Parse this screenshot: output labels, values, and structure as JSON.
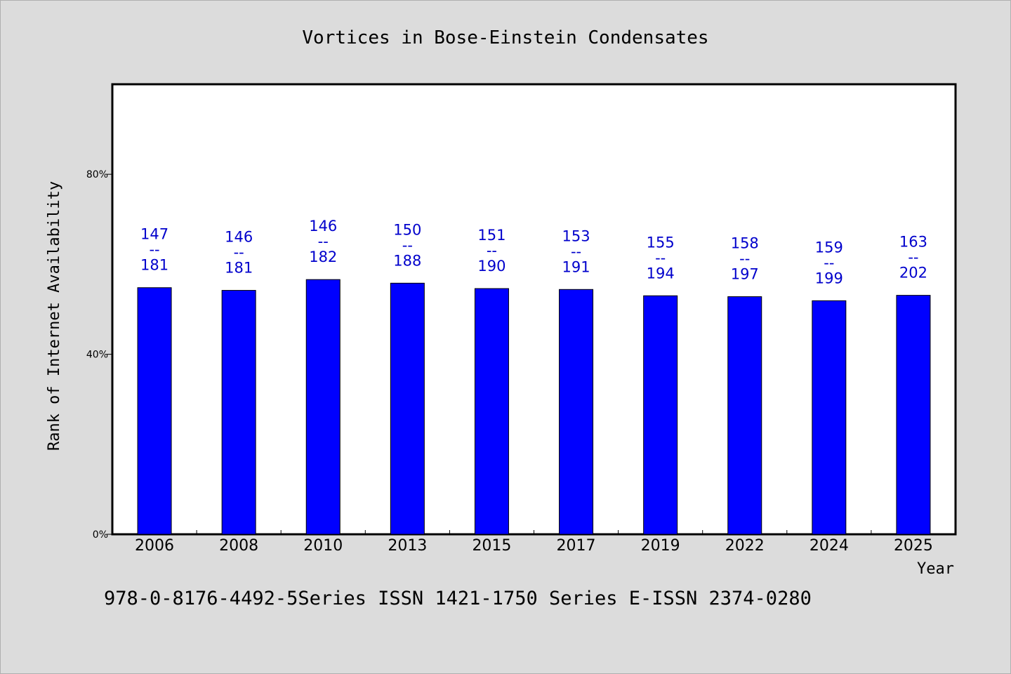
{
  "chart_data": {
    "type": "bar",
    "title": "Vortices in Bose-Einstein Condensates",
    "xlabel": "Year",
    "ylabel": "Rank of Internet Availability",
    "ylim": [
      0,
      100
    ],
    "yticks": [
      0,
      40,
      80
    ],
    "ytick_suffix": "%",
    "grid": false,
    "categories": [
      "2006",
      "2008",
      "2010",
      "2013",
      "2015",
      "2017",
      "2019",
      "2022",
      "2024",
      "2025"
    ],
    "values": [
      54.8,
      54.2,
      56.6,
      55.8,
      54.6,
      54.4,
      53.0,
      52.8,
      51.9,
      53.1
    ],
    "rank": [
      147,
      146,
      146,
      150,
      151,
      153,
      155,
      158,
      159,
      163
    ],
    "total": [
      181,
      181,
      182,
      188,
      190,
      191,
      194,
      197,
      199,
      202
    ],
    "label_separator": "--",
    "colors": {
      "bar": "#0000ff",
      "label": "#0000cc"
    }
  },
  "footer": {
    "text": "978-0-8176-4492-5Series ISSN 1421-1750 Series E-ISSN 2374-0280"
  }
}
